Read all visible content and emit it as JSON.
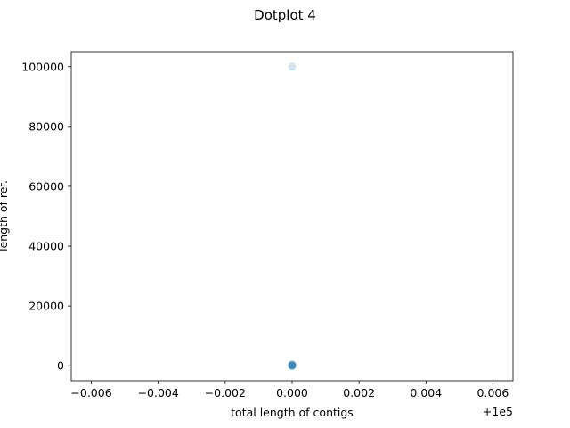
{
  "chart_data": {
    "type": "scatter",
    "title": "Dotplot 4",
    "xlabel": "total length of contigs",
    "ylabel": "length of ref.",
    "x_offset_label": "+1e5",
    "xlim": [
      -0.0066,
      0.0066
    ],
    "ylim": [
      -5000,
      105000
    ],
    "x_ticks": [
      -0.006,
      -0.004,
      -0.002,
      0.0,
      0.002,
      0.004,
      0.006
    ],
    "x_tick_labels": [
      "−0.006",
      "−0.004",
      "−0.002",
      "0.000",
      "0.002",
      "0.004",
      "0.006"
    ],
    "y_ticks": [
      0,
      20000,
      40000,
      60000,
      80000,
      100000
    ],
    "y_tick_labels": [
      "0",
      "20000",
      "40000",
      "60000",
      "80000",
      "100000"
    ],
    "grid": false,
    "marker_color": "#1f77b4",
    "marker_alpha": 0.2,
    "series": [
      {
        "x": [
          0.0,
          0.0,
          0.0,
          0.0,
          0.0,
          0.0,
          0.0,
          0.0,
          0.0,
          0.0
        ],
        "y": [
          100000,
          600,
          300,
          200,
          150,
          100,
          80,
          50,
          20,
          0
        ]
      }
    ]
  }
}
